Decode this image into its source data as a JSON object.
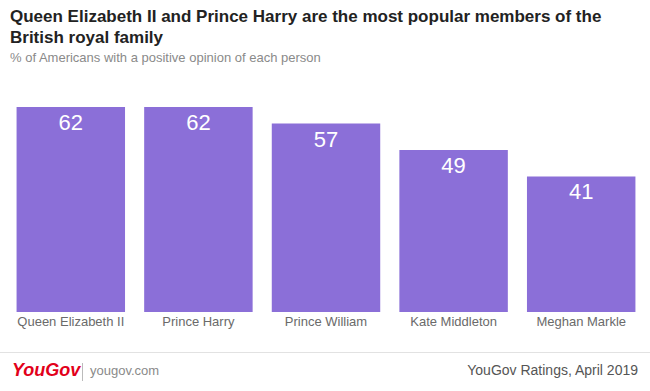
{
  "chart_data": {
    "type": "bar",
    "title": "Queen Elizabeth II and Prince Harry are the most popular members of the British royal family",
    "subtitle": "% of Americans with a positive opinion of each person",
    "categories": [
      "Queen Elizabeth II",
      "Prince Harry",
      "Prince William",
      "Kate Middleton",
      "Meghan Markle"
    ],
    "values": [
      62,
      62,
      57,
      49,
      41
    ],
    "color": "#8b6fd8",
    "ylim": [
      0,
      62
    ],
    "grid": false,
    "data_labels": true,
    "tick_labels": "x",
    "annotations": [
      "YouGov",
      "yougov.com",
      "YouGov Ratings, April 2019"
    ]
  }
}
